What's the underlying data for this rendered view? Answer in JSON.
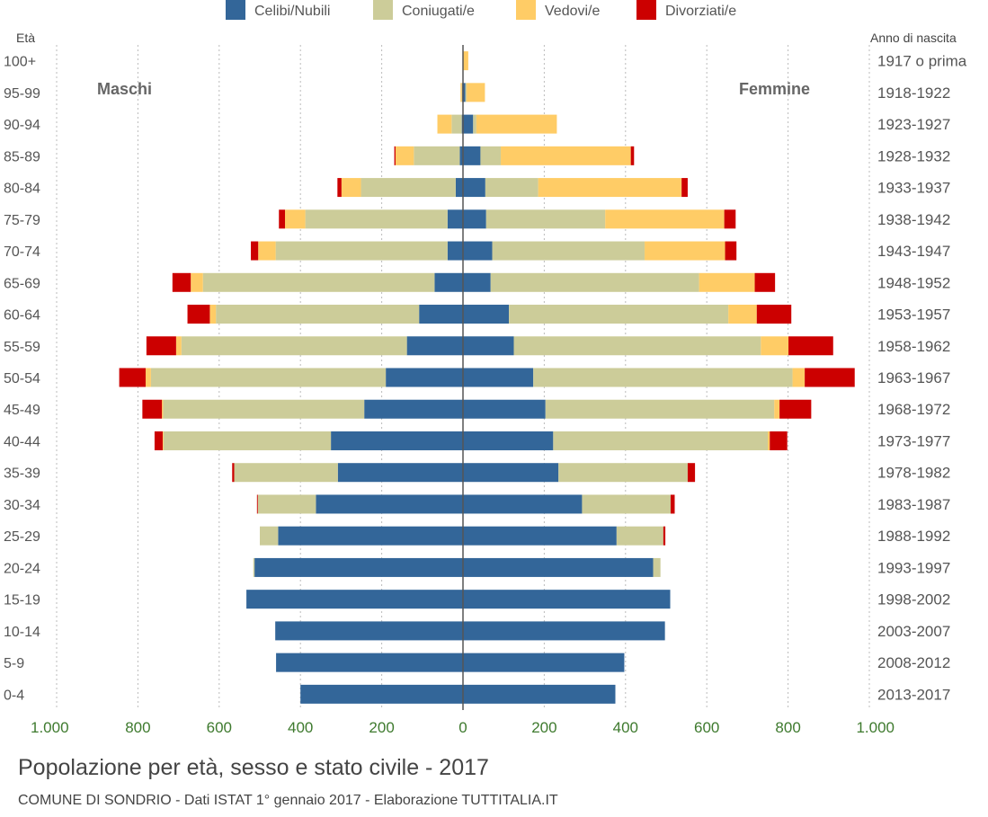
{
  "chart_data": {
    "type": "bar",
    "orientation": "horizontal-pyramid",
    "title": "Popolazione per età, sesso e stato civile - 2017",
    "subtitle": "COMUNE DI SONDRIO - Dati ISTAT 1° gennaio 2017 - Elaborazione TUTTITALIA.IT",
    "left_group": "Maschi",
    "right_group": "Femmine",
    "left_axis_header": "Età",
    "right_axis_header": "Anno di nascita",
    "xlim": [
      -1000,
      1000
    ],
    "xticks": [
      -1000,
      -800,
      -600,
      -400,
      -200,
      0,
      200,
      400,
      600,
      800,
      1000
    ],
    "xtick_labels": [
      "1.000",
      "800",
      "600",
      "400",
      "200",
      "0",
      "200",
      "400",
      "600",
      "800",
      "1.000"
    ],
    "grid": true,
    "legend_position": "top",
    "categories": [
      "100+",
      "95-99",
      "90-94",
      "85-89",
      "80-84",
      "75-79",
      "70-74",
      "65-69",
      "60-64",
      "55-59",
      "50-54",
      "45-49",
      "40-44",
      "35-39",
      "30-34",
      "25-29",
      "20-24",
      "15-19",
      "10-14",
      "5-9",
      "0-4"
    ],
    "birth_years": [
      "1917 o prima",
      "1918-1922",
      "1923-1927",
      "1928-1932",
      "1933-1937",
      "1938-1942",
      "1943-1947",
      "1948-1952",
      "1953-1957",
      "1958-1962",
      "1963-1967",
      "1968-1972",
      "1973-1977",
      "1978-1982",
      "1983-1987",
      "1988-1992",
      "1993-1997",
      "1998-2002",
      "2003-2007",
      "2008-2012",
      "2013-2017"
    ],
    "series": [
      {
        "name": "Celibi/Nubili",
        "color": "#336699",
        "male": [
          1,
          2,
          3,
          8,
          18,
          38,
          38,
          70,
          108,
          138,
          190,
          243,
          325,
          308,
          362,
          455,
          513,
          533,
          462,
          460,
          400
        ],
        "female": [
          1,
          6,
          25,
          43,
          55,
          57,
          72,
          68,
          113,
          125,
          173,
          203,
          222,
          235,
          293,
          378,
          468,
          510,
          497,
          397,
          375
        ]
      },
      {
        "name": "Coniugati/e",
        "color": "#cccc99",
        "male": [
          0,
          1,
          25,
          113,
          233,
          350,
          423,
          570,
          500,
          555,
          578,
          495,
          412,
          255,
          143,
          45,
          3,
          0,
          0,
          0,
          0
        ],
        "female": [
          0,
          3,
          8,
          50,
          130,
          293,
          375,
          513,
          540,
          608,
          638,
          563,
          528,
          318,
          218,
          115,
          18,
          0,
          0,
          0,
          0
        ]
      },
      {
        "name": "Vedovi/e",
        "color": "#ffcc66",
        "male": [
          0,
          3,
          35,
          45,
          48,
          50,
          43,
          30,
          15,
          13,
          13,
          3,
          2,
          0,
          0,
          0,
          0,
          0,
          0,
          0,
          0
        ],
        "female": [
          12,
          45,
          198,
          320,
          353,
          293,
          198,
          137,
          70,
          68,
          30,
          13,
          5,
          0,
          0,
          0,
          0,
          0,
          0,
          0,
          0
        ]
      },
      {
        "name": "Divorziati/e",
        "color": "#cc0000",
        "male": [
          0,
          0,
          0,
          3,
          10,
          15,
          18,
          45,
          55,
          73,
          65,
          48,
          20,
          5,
          2,
          0,
          0,
          0,
          0,
          0,
          0
        ],
        "female": [
          0,
          0,
          0,
          8,
          15,
          28,
          28,
          50,
          85,
          110,
          123,
          78,
          43,
          18,
          10,
          5,
          0,
          0,
          0,
          0,
          0
        ]
      }
    ]
  }
}
